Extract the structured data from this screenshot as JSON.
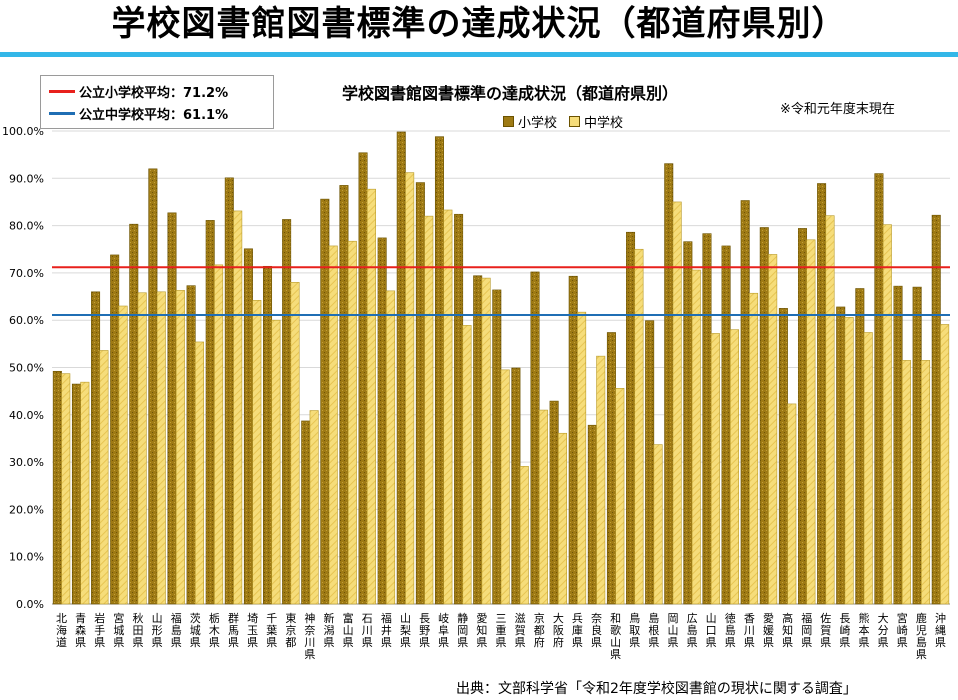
{
  "slide_title": "学校図書館図書標準の達成状況（都道府県別）",
  "averages": [
    {
      "label": "公立小学校平均：71.2%",
      "value": 71.2,
      "color": "#e8201c"
    },
    {
      "label": "公立中学校平均：61.1%",
      "value": 61.1,
      "color": "#1f6eb4"
    }
  ],
  "note": "※令和元年度末現在",
  "source": "出典：文部科学省「令和2年度学校図書館の現状に関する調査」",
  "colors": {
    "elementary": "#9e7a14",
    "junior": "#f6dd7a",
    "title_rule": "#33b7e8"
  },
  "chart_data": {
    "type": "bar",
    "title": "学校図書館図書標準の達成状況（都道府県別）",
    "ylim": [
      0,
      100
    ],
    "yticks": [
      "0.0%",
      "10.0%",
      "20.0%",
      "30.0%",
      "40.0%",
      "50.0%",
      "60.0%",
      "70.0%",
      "80.0%",
      "90.0%",
      "100.0%"
    ],
    "categories": [
      "北海道",
      "青森県",
      "岩手県",
      "宮城県",
      "秋田県",
      "山形県",
      "福島県",
      "茨城県",
      "栃木県",
      "群馬県",
      "埼玉県",
      "千葉県",
      "東京都",
      "神奈川県",
      "新潟県",
      "富山県",
      "石川県",
      "福井県",
      "山梨県",
      "長野県",
      "岐阜県",
      "静岡県",
      "愛知県",
      "三重県",
      "滋賀県",
      "京都府",
      "大阪府",
      "兵庫県",
      "奈良県",
      "和歌山県",
      "鳥取県",
      "島根県",
      "岡山県",
      "広島県",
      "山口県",
      "徳島県",
      "香川県",
      "愛媛県",
      "高知県",
      "福岡県",
      "佐賀県",
      "長崎県",
      "熊本県",
      "大分県",
      "宮崎県",
      "鹿児島県",
      "沖縄県"
    ],
    "series": [
      {
        "name": "小学校",
        "values": [
          49.2,
          46.5,
          66.0,
          73.8,
          80.3,
          92.0,
          82.7,
          67.3,
          81.1,
          90.1,
          75.1,
          71.4,
          81.3,
          38.7,
          85.6,
          88.5,
          95.4,
          77.4,
          99.8,
          89.1,
          98.8,
          82.4,
          69.4,
          66.4,
          49.9,
          70.2,
          42.9,
          69.3,
          37.8,
          57.4,
          78.6,
          59.9,
          93.1,
          76.6,
          78.3,
          75.7,
          85.3,
          79.6,
          62.5,
          79.4,
          88.9,
          62.8,
          66.7,
          91.0,
          67.2,
          67.0,
          82.2
        ]
      },
      {
        "name": "中学校",
        "values": [
          48.7,
          46.9,
          53.6,
          63.0,
          65.8,
          66.0,
          66.3,
          55.4,
          71.7,
          83.1,
          64.2,
          60.0,
          68.0,
          40.9,
          75.7,
          76.7,
          87.7,
          66.2,
          91.2,
          82.0,
          83.3,
          58.9,
          68.9,
          49.5,
          29.1,
          41.0,
          36.1,
          61.7,
          52.4,
          45.6,
          75.0,
          33.7,
          85.0,
          70.6,
          57.2,
          58.0,
          65.7,
          73.9,
          42.3,
          77.0,
          82.1,
          60.6,
          57.4,
          80.2,
          51.5,
          51.5,
          59.1
        ]
      }
    ]
  }
}
